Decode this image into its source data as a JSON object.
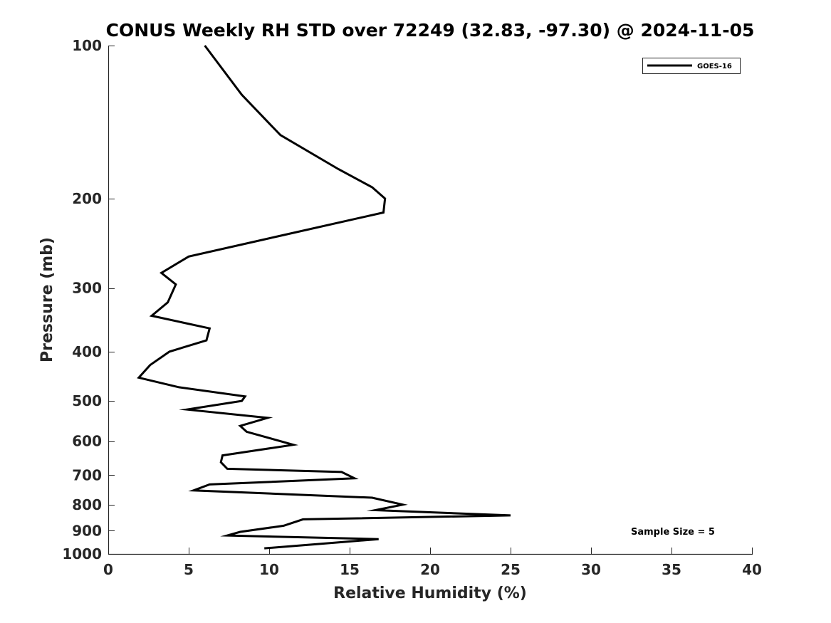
{
  "chart_data": {
    "type": "line",
    "title": "CONUS Weekly RH STD over 72249 (32.83, -97.30) @ 2024-11-05",
    "xlabel": "Relative Humidity (%)",
    "ylabel": "Pressure (mb)",
    "xlim": [
      0,
      40
    ],
    "ylim": [
      1000,
      100
    ],
    "y_scale": "log",
    "y_reversed": true,
    "x_ticks": [
      0,
      5,
      10,
      15,
      20,
      25,
      30,
      35,
      40
    ],
    "y_ticks": [
      100,
      200,
      300,
      400,
      500,
      600,
      700,
      800,
      900,
      1000
    ],
    "grid": false,
    "legend_position": "top-right",
    "annotation": "Sample Size = 5",
    "series": [
      {
        "name": "GOES-16",
        "color": "#000000",
        "points": [
          [
            6.0,
            100
          ],
          [
            8.3,
            125
          ],
          [
            10.7,
            150
          ],
          [
            14.3,
            175
          ],
          [
            16.4,
            190
          ],
          [
            17.2,
            200
          ],
          [
            17.1,
            213
          ],
          [
            10.6,
            237
          ],
          [
            5.0,
            260
          ],
          [
            3.3,
            280
          ],
          [
            4.2,
            295
          ],
          [
            3.7,
            320
          ],
          [
            2.7,
            340
          ],
          [
            6.3,
            360
          ],
          [
            6.1,
            380
          ],
          [
            3.8,
            400
          ],
          [
            2.6,
            425
          ],
          [
            1.9,
            450
          ],
          [
            4.4,
            470
          ],
          [
            8.5,
            490
          ],
          [
            8.3,
            500
          ],
          [
            4.9,
            520
          ],
          [
            9.9,
            540
          ],
          [
            8.2,
            560
          ],
          [
            8.6,
            575
          ],
          [
            11.5,
            610
          ],
          [
            7.1,
            640
          ],
          [
            7.0,
            660
          ],
          [
            7.4,
            680
          ],
          [
            14.5,
            690
          ],
          [
            15.3,
            710
          ],
          [
            6.3,
            730
          ],
          [
            5.3,
            750
          ],
          [
            16.4,
            775
          ],
          [
            18.3,
            800
          ],
          [
            16.6,
            820
          ],
          [
            25.0,
            840
          ],
          [
            12.1,
            855
          ],
          [
            10.9,
            880
          ],
          [
            8.2,
            905
          ],
          [
            7.4,
            920
          ],
          [
            16.8,
            935
          ],
          [
            12.4,
            960
          ],
          [
            9.7,
            975
          ]
        ]
      }
    ]
  }
}
